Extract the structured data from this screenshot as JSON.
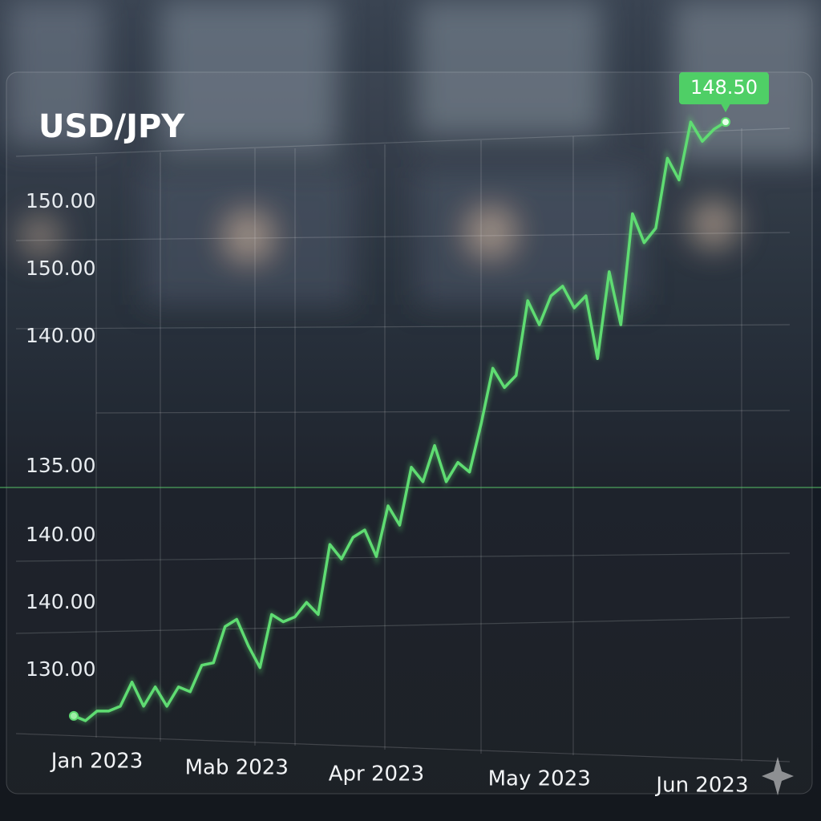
{
  "chart_data": {
    "type": "line",
    "title": "USD/JPY",
    "y_axis_labels": [
      "150.00",
      "150.00",
      "140.00",
      "135.00",
      "140.00",
      "140.00",
      "130.00"
    ],
    "categories": [
      null,
      null,
      "Jan 2023",
      null,
      null,
      null,
      null,
      null,
      null,
      null,
      null,
      null,
      null,
      null,
      "Mab 2023",
      null,
      null,
      null,
      null,
      null,
      null,
      null,
      null,
      null,
      null,
      null,
      "Apr 2023",
      null,
      null,
      null,
      null,
      null,
      null,
      null,
      null,
      null,
      null,
      null,
      null,
      null,
      "May 2023",
      null,
      null,
      null,
      null,
      null,
      null,
      null,
      null,
      null,
      null,
      null,
      null,
      null,
      "Jun 2023",
      null,
      null
    ],
    "series": [
      {
        "name": "USD/JPY",
        "color": "#5fdc72",
        "values": [
          123.9,
          123.7,
          124.1,
          124.1,
          124.3,
          125.3,
          124.3,
          125.1,
          124.3,
          125.1,
          124.9,
          126.0,
          126.1,
          127.6,
          127.9,
          126.8,
          125.9,
          128.1,
          127.8,
          128.0,
          128.6,
          128.1,
          131.0,
          130.4,
          131.3,
          131.6,
          130.5,
          132.6,
          131.8,
          134.2,
          133.6,
          135.1,
          133.6,
          134.4,
          134.0,
          136.0,
          138.3,
          137.5,
          138.0,
          141.1,
          140.1,
          141.3,
          141.7,
          140.8,
          141.3,
          138.7,
          142.3,
          140.1,
          144.7,
          143.5,
          144.1,
          147.0,
          146.1,
          148.5,
          147.7,
          148.2,
          148.5
        ],
        "value_labels": [
          null,
          null,
          null,
          null,
          null,
          null,
          null,
          null,
          null,
          null,
          null,
          null,
          null,
          null,
          null,
          null,
          null,
          null,
          null,
          null,
          null,
          null,
          null,
          null,
          null,
          null,
          null,
          null,
          null,
          null,
          null,
          null,
          null,
          null,
          null,
          null,
          null,
          null,
          null,
          null,
          null,
          null,
          null,
          null,
          null,
          null,
          null,
          null,
          null,
          null,
          null,
          null,
          null,
          null,
          null,
          null,
          "148.50"
        ]
      }
    ],
    "ylim": [
      123,
      150
    ]
  }
}
